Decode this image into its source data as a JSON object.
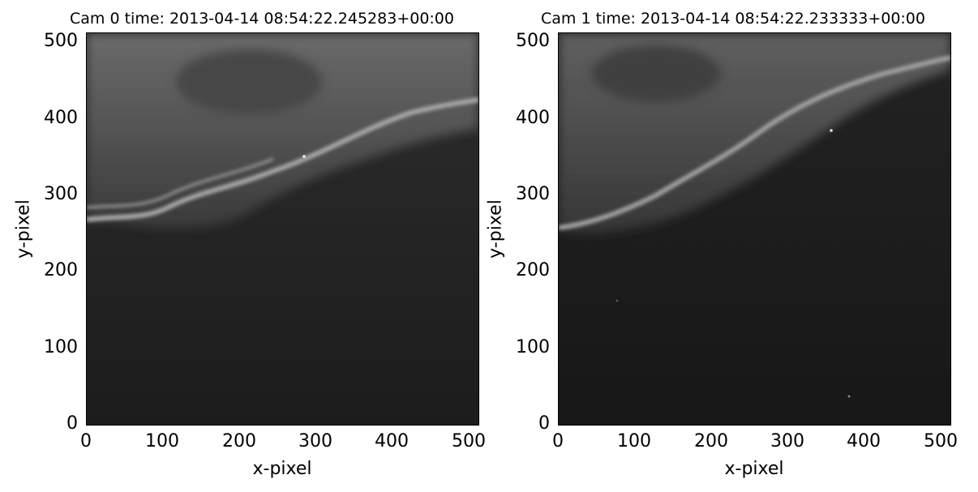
{
  "panels": [
    {
      "title": "Cam 0  time: 2013-04-14 08:54:22.245283+00:00",
      "xlabel": "x-pixel",
      "ylabel": "y-pixel",
      "xticks": [
        "0",
        "100",
        "200",
        "300",
        "400",
        "500"
      ],
      "yticks": [
        "0",
        "100",
        "200",
        "300",
        "400",
        "500"
      ]
    },
    {
      "title": "Cam 1  time: 2013-04-14 08:54:22.233333+00:00",
      "xlabel": "x-pixel",
      "ylabel": "y-pixel",
      "xticks": [
        "0",
        "100",
        "200",
        "300",
        "400",
        "500"
      ],
      "yticks": [
        "0",
        "100",
        "200",
        "300",
        "400",
        "500"
      ]
    }
  ]
}
